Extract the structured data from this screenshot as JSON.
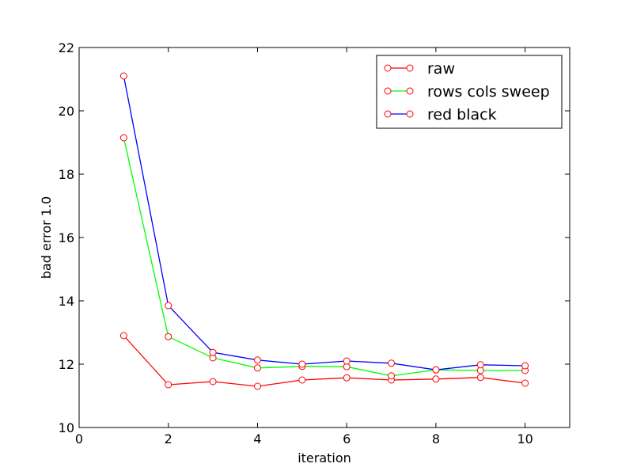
{
  "chart_data": {
    "type": "line",
    "title": "",
    "xlabel": "iteration",
    "ylabel": "bad error 1.0",
    "xlim": [
      0,
      11
    ],
    "ylim": [
      10,
      22
    ],
    "xticks": [
      0,
      2,
      4,
      6,
      8,
      10
    ],
    "yticks": [
      10,
      12,
      14,
      16,
      18,
      20,
      22
    ],
    "grid": false,
    "legend_position": "top-right",
    "x": [
      1,
      2,
      3,
      4,
      5,
      6,
      7,
      8,
      9,
      10
    ],
    "series": [
      {
        "name": "raw",
        "color": "#ff0000",
        "values": [
          12.9,
          11.35,
          11.45,
          11.3,
          11.5,
          11.57,
          11.5,
          11.53,
          11.58,
          11.4
        ]
      },
      {
        "name": "rows cols sweep",
        "color": "#00ff00",
        "values": [
          19.15,
          12.87,
          12.2,
          11.88,
          11.93,
          11.92,
          11.63,
          11.82,
          11.8,
          11.8
        ]
      },
      {
        "name": "red black",
        "color": "#0000ff",
        "values": [
          21.1,
          13.85,
          12.37,
          12.13,
          12.0,
          12.1,
          12.03,
          11.82,
          11.98,
          11.95
        ]
      }
    ],
    "marker": {
      "fill": "#ffffff",
      "stroke": "#ff0000"
    }
  }
}
